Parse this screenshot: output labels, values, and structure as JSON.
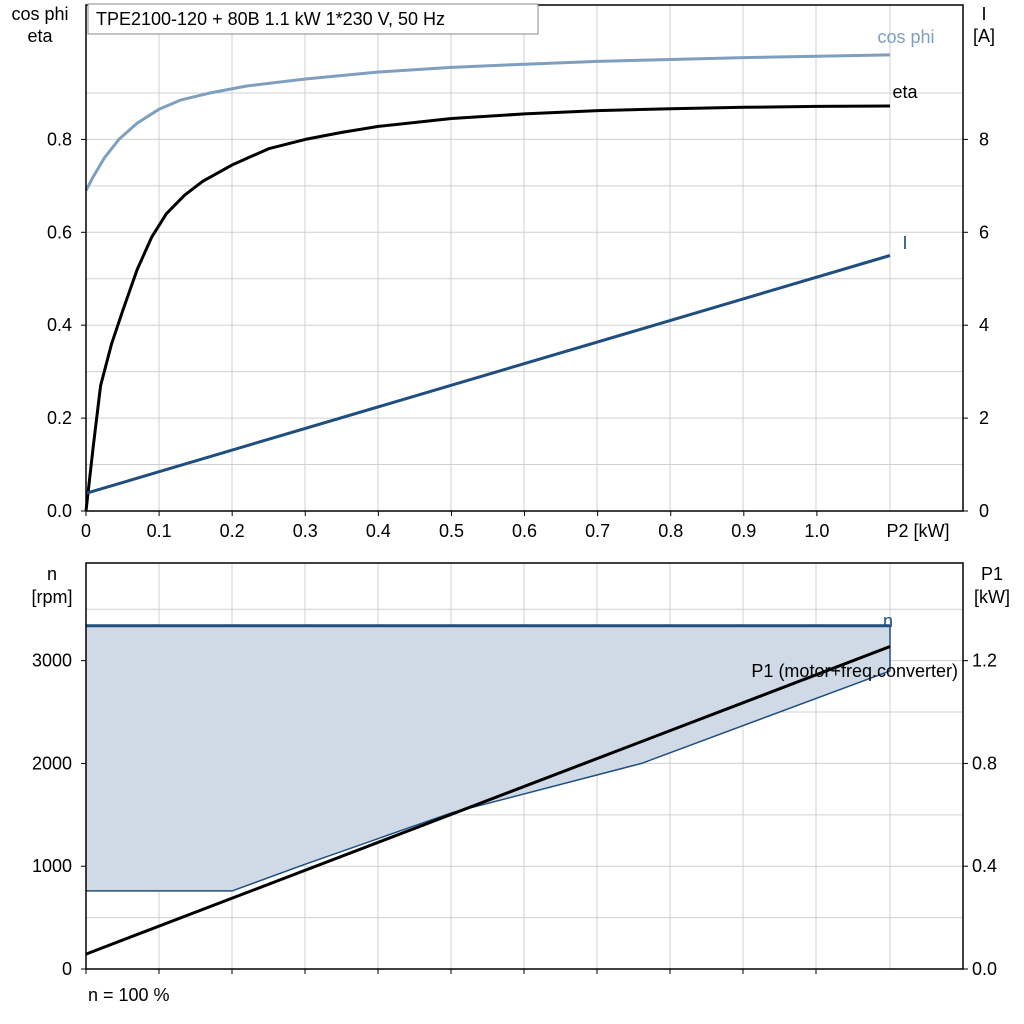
{
  "chart_data": [
    {
      "type": "line",
      "title": "TPE2100-120 + 80B   1.1 kW   1*230 V, 50 Hz",
      "xlabel": "P2 [kW]",
      "ylabel_left_line1": "cos phi",
      "ylabel_left_line2": "eta",
      "ylabel_right_line1": "I",
      "ylabel_right_line2": "[A]",
      "xlim": [
        0,
        1.1
      ],
      "ylim_left": [
        0,
        1.0
      ],
      "ylim_right": [
        0,
        10
      ],
      "x_ticks": [
        "0",
        "0.1",
        "0.2",
        "0.3",
        "0.4",
        "0.5",
        "0.6",
        "0.7",
        "0.8",
        "0.9",
        "1.0"
      ],
      "x_tick_values": [
        0,
        0.1,
        0.2,
        0.3,
        0.4,
        0.5,
        0.6,
        0.7,
        0.8,
        0.9,
        1.0
      ],
      "y_left_ticks": [
        "0.0",
        "0.2",
        "0.4",
        "0.6",
        "0.8"
      ],
      "y_left_tick_values": [
        0,
        0.2,
        0.4,
        0.6,
        0.8
      ],
      "y_right_ticks": [
        "0",
        "2",
        "4",
        "6",
        "8"
      ],
      "y_right_tick_values": [
        0,
        2,
        4,
        6,
        8
      ],
      "grid": true,
      "series": [
        {
          "name": "cos phi",
          "axis": "left",
          "color": "#7f9fbf",
          "x": [
            0,
            0.01,
            0.025,
            0.045,
            0.07,
            0.1,
            0.13,
            0.17,
            0.22,
            0.3,
            0.4,
            0.5,
            0.6,
            0.7,
            0.8,
            0.9,
            1.0,
            1.1
          ],
          "y": [
            0.69,
            0.72,
            0.76,
            0.8,
            0.835,
            0.865,
            0.885,
            0.9,
            0.915,
            0.93,
            0.945,
            0.955,
            0.962,
            0.968,
            0.972,
            0.976,
            0.979,
            0.982
          ]
        },
        {
          "name": "eta",
          "axis": "left",
          "color": "#000000",
          "x": [
            0,
            0.01,
            0.02,
            0.035,
            0.05,
            0.07,
            0.09,
            0.11,
            0.135,
            0.16,
            0.2,
            0.25,
            0.3,
            0.35,
            0.4,
            0.5,
            0.6,
            0.7,
            0.8,
            0.9,
            1.0,
            1.1
          ],
          "y": [
            0.0,
            0.14,
            0.27,
            0.36,
            0.43,
            0.52,
            0.59,
            0.64,
            0.68,
            0.71,
            0.745,
            0.78,
            0.8,
            0.815,
            0.828,
            0.845,
            0.855,
            0.862,
            0.866,
            0.869,
            0.871,
            0.872
          ]
        },
        {
          "name": "I",
          "axis": "right",
          "color": "#1f4e7f",
          "x": [
            0,
            1.1
          ],
          "y": [
            0.38,
            5.5
          ]
        }
      ]
    },
    {
      "type": "line",
      "xlabel": "",
      "ylabel_left_line1": "n",
      "ylabel_left_line2": "[rpm]",
      "ylabel_right_line1": "P1",
      "ylabel_right_line2": "[kW]",
      "xlim": [
        0,
        1.1
      ],
      "ylim_left": [
        0,
        3950
      ],
      "ylim_right": [
        0,
        1.58
      ],
      "y_left_ticks": [
        "0",
        "1000",
        "2000",
        "3000"
      ],
      "y_left_tick_values": [
        0,
        1000,
        2000,
        3000
      ],
      "y_right_ticks": [
        "0.0",
        "0.4",
        "0.8",
        "1.2"
      ],
      "y_right_tick_values": [
        0.0,
        0.4,
        0.8,
        1.2
      ],
      "grid": true,
      "footnote": "n = 100 %",
      "area": {
        "color": "#d0dae6",
        "edge_color": "#1f4e7f",
        "x_upper": [
          0,
          1.1
        ],
        "y_upper": [
          3340,
          3340
        ],
        "x_lower": [
          0,
          0.2,
          0.3,
          0.5,
          0.76,
          1.1
        ],
        "y_lower": [
          760,
          760,
          1020,
          1520,
          2000,
          2900
        ]
      },
      "series": [
        {
          "name": "n",
          "axis": "left",
          "color": "#1f4e7f",
          "x": [
            0,
            1.1
          ],
          "y": [
            3340,
            3340
          ]
        },
        {
          "name": "P1 (motor+freq.converter)",
          "axis": "right",
          "color": "#000000",
          "x": [
            0,
            1.1
          ],
          "y": [
            0.058,
            1.255
          ]
        }
      ]
    }
  ]
}
